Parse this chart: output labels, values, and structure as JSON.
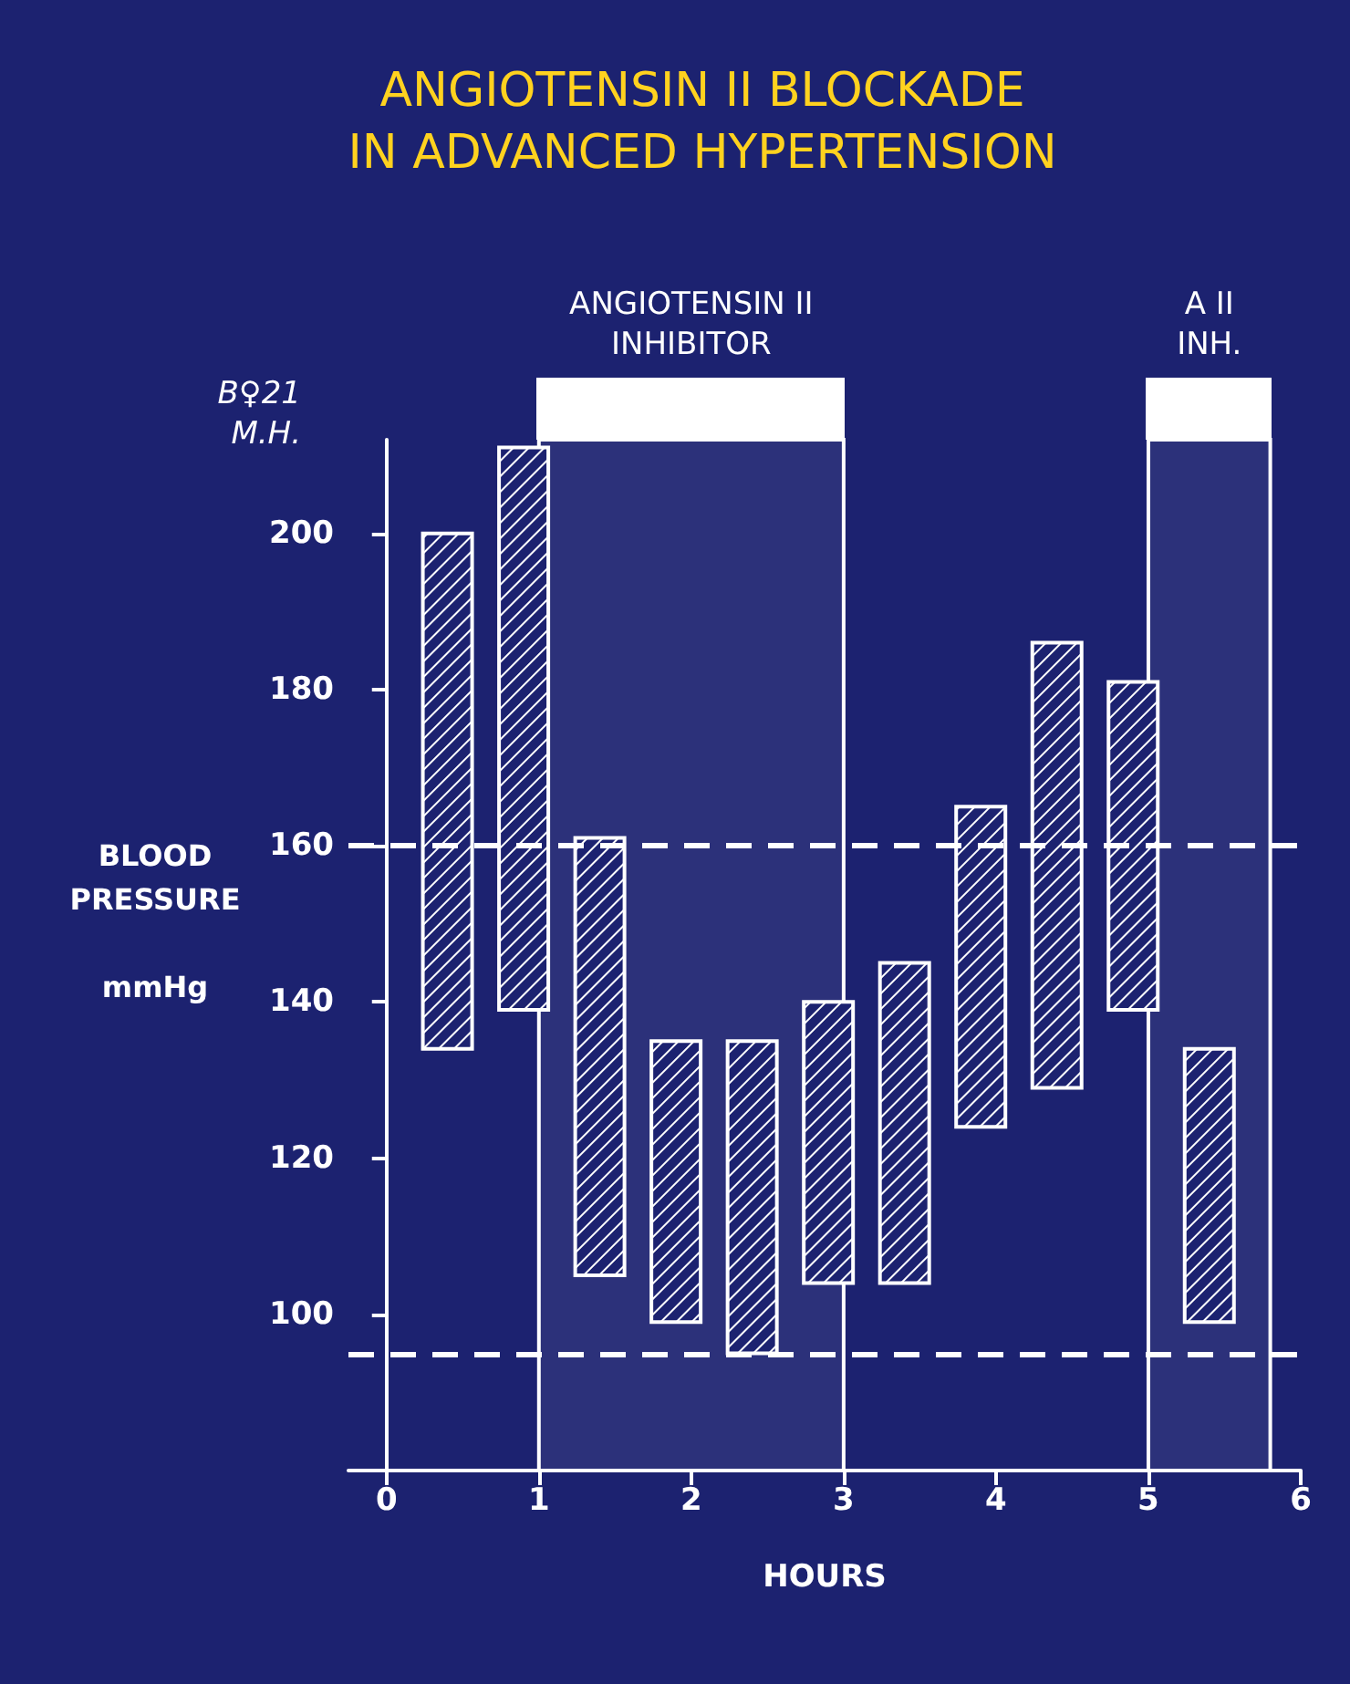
{
  "chart_data": {
    "type": "bar",
    "title": "ANGIOTENSIN II BLOCKADE\nIN ADVANCED HYPERTENSION",
    "xlabel": "HOURS",
    "ylabel": "BLOOD\nPRESSURE\n\nmmHg",
    "annotations": [
      "B♀21\nM.H."
    ],
    "x": [
      0.4,
      0.9,
      1.4,
      1.9,
      2.4,
      2.9,
      3.4,
      3.9,
      4.4,
      4.9,
      5.4
    ],
    "base": [
      134,
      139,
      105,
      99,
      95,
      104,
      104,
      124,
      129,
      139,
      99
    ],
    "values": [
      66,
      72,
      56,
      36,
      40,
      36,
      41,
      41,
      57,
      42,
      35
    ],
    "color": "#ffffff",
    "xlim": [
      -0.25,
      6
    ],
    "xticks": [
      0,
      1,
      2,
      3,
      4,
      5,
      6
    ],
    "ylim": [
      80,
      212
    ],
    "yticks": [
      100,
      120,
      140,
      160,
      180,
      200
    ],
    "grid": false,
    "ref_lines": [
      {
        "axis": "y",
        "value": 160,
        "line_style": "dashed",
        "color": "#ffffff"
      },
      {
        "axis": "y",
        "value": 95,
        "line_style": "dashed",
        "color": "#ffffff"
      }
    ],
    "bands": [
      {
        "axis": "x",
        "from": 1,
        "to": 3,
        "label": "ANGIOTENSIN II\nINHIBITOR",
        "color": "#ffffff"
      },
      {
        "axis": "x",
        "from": 5,
        "to": 5.8,
        "label": "A II\nINH.",
        "color": "#ffffff"
      }
    ]
  }
}
